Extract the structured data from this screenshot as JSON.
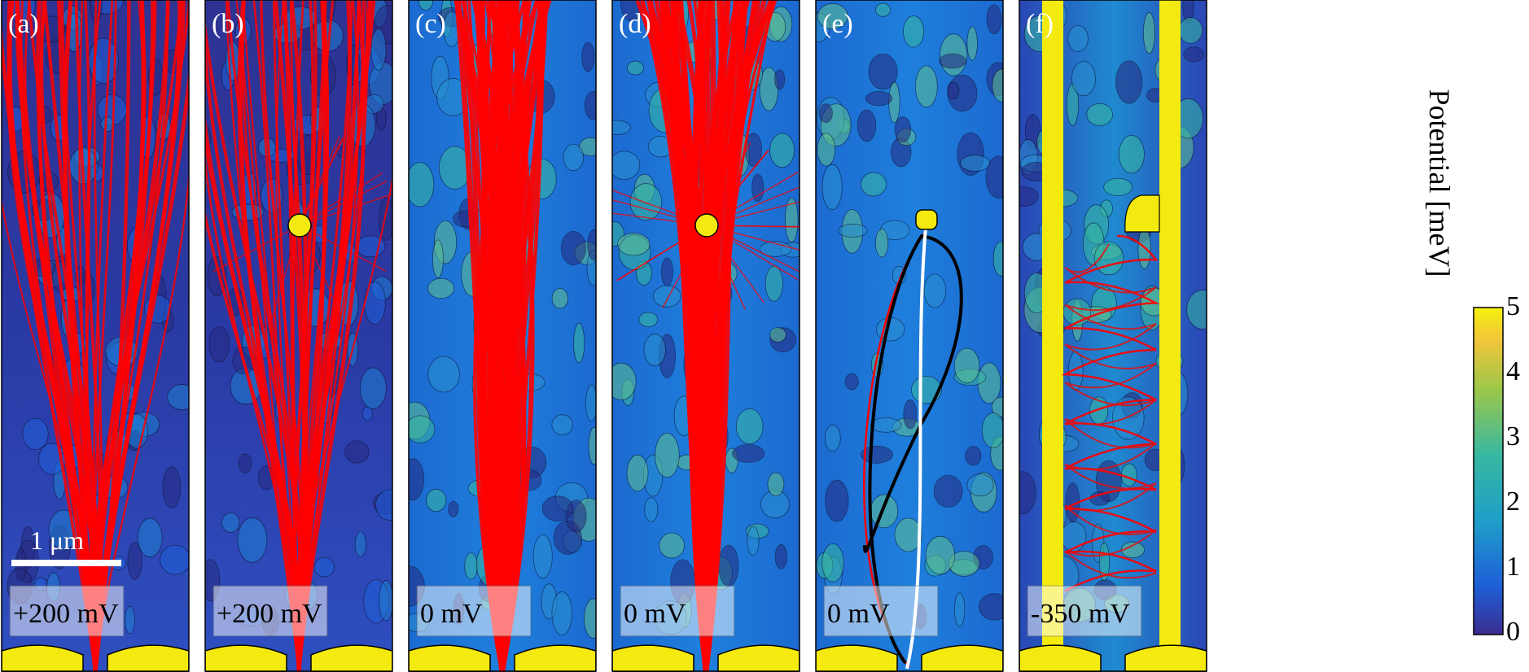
{
  "figure": {
    "panels": [
      {
        "id": "a",
        "label": "(a)",
        "bias": "+200 mV",
        "has_dot": false,
        "dot_style": "none",
        "background": "dark",
        "rays": "fan",
        "gates": "yellow",
        "scalebar": true
      },
      {
        "id": "b",
        "label": "(b)",
        "bias": "+200 mV",
        "has_dot": true,
        "dot_style": "circle",
        "background": "dark",
        "rays": "fan-dot",
        "gates": "yellow",
        "scalebar": false
      },
      {
        "id": "c",
        "label": "(c)",
        "bias": "0 mV",
        "has_dot": false,
        "dot_style": "none",
        "background": "medium",
        "rays": "dense",
        "gates": "yellow",
        "scalebar": false
      },
      {
        "id": "d",
        "label": "(d)",
        "bias": "0 mV",
        "has_dot": true,
        "dot_style": "circle",
        "background": "medium",
        "rays": "dense-dot",
        "gates": "yellow",
        "scalebar": false
      },
      {
        "id": "e",
        "label": "(e)",
        "bias": "0 mV",
        "has_dot": true,
        "dot_style": "square",
        "background": "medium",
        "rays": "orbits",
        "gates": "yellow",
        "scalebar": false
      },
      {
        "id": "f",
        "label": "(f)",
        "bias": "-350 mV",
        "has_dot": true,
        "dot_style": "notch",
        "background": "channel",
        "rays": "bounce",
        "gates": "yellow",
        "scalebar": false
      }
    ],
    "scalebar_label": "1 μm",
    "colorbar": {
      "title": "Potential [meV]",
      "ticks": [
        "0",
        "1",
        "2",
        "3",
        "4",
        "5"
      ],
      "colors": [
        "#3a2d8f",
        "#1f5fd8",
        "#1f9fc8",
        "#38b8a0",
        "#9cc74a",
        "#f2c53a",
        "#f5f20e"
      ]
    },
    "colors": {
      "ray": "#ff0000",
      "orbit_black": "#000000",
      "orbit_white": "#ffffff",
      "gate": "#f5ea10",
      "label_box": "#ffffff"
    }
  }
}
